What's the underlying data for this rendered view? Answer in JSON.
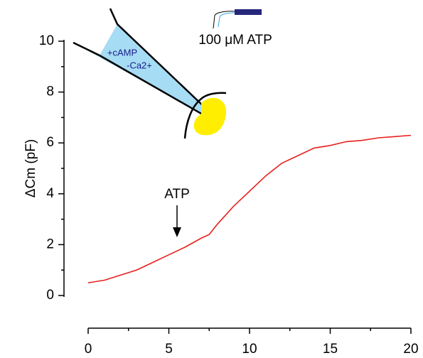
{
  "chart_data": {
    "type": "line",
    "y_label": "ΔCm (pF)",
    "annotations": [
      "ATP",
      "100 μM ATP",
      "+cAMP",
      "-Ca2+"
    ],
    "x": [
      0,
      1,
      2,
      3,
      4,
      5,
      6,
      7,
      7.5,
      8,
      9,
      10,
      11,
      12,
      13,
      14,
      15,
      16,
      17,
      18,
      19,
      20
    ],
    "series": [
      {
        "color": "#e8201c",
        "values": [
          0.5,
          0.6,
          0.8,
          1.0,
          1.3,
          1.6,
          1.9,
          2.25,
          2.4,
          2.8,
          3.5,
          4.1,
          4.7,
          5.2,
          5.5,
          5.8,
          5.9,
          6.05,
          6.1,
          6.2,
          6.25,
          6.3
        ]
      }
    ],
    "xlim": [
      0,
      20
    ],
    "xticks": [
      0,
      5,
      10,
      15,
      20
    ],
    "x_minor_ticks": [
      2.5,
      7.5,
      12.5,
      17.5
    ],
    "ylim": [
      0,
      10
    ],
    "yticks": [
      0,
      2,
      4,
      6,
      8,
      10
    ],
    "y_minor_ticks": [
      1,
      3,
      5,
      7,
      9
    ]
  }
}
